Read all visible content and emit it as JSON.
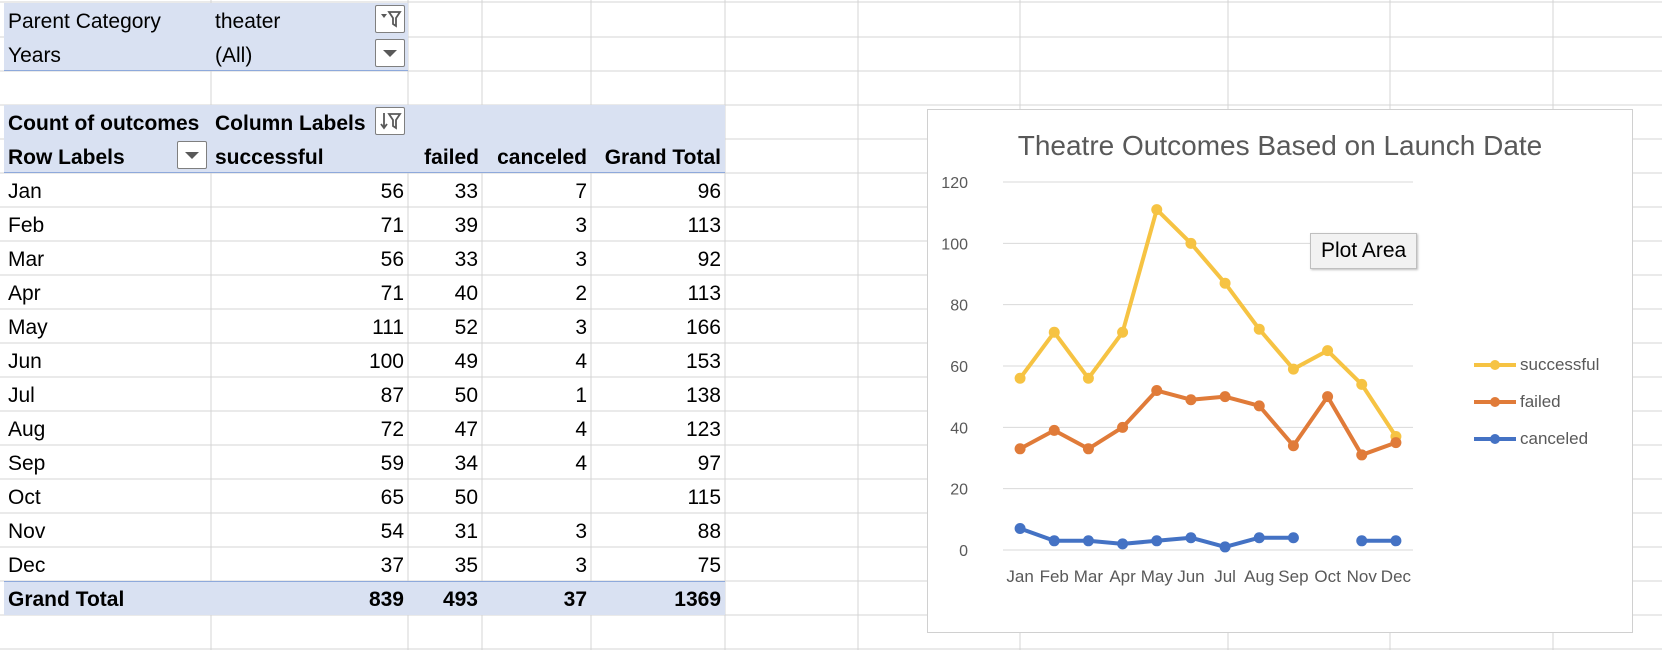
{
  "filters": {
    "parent_category_label": "Parent Category",
    "parent_category_value": "theater",
    "years_label": "Years",
    "years_value": "(All)"
  },
  "pivot": {
    "count_label": "Count of outcomes",
    "column_labels": "Column Labels",
    "row_labels": "Row Labels",
    "columns": [
      "successful",
      "failed",
      "canceled",
      "Grand Total"
    ],
    "rows": [
      {
        "label": "Jan",
        "successful": "56",
        "failed": "33",
        "canceled": "7",
        "total": "96"
      },
      {
        "label": "Feb",
        "successful": "71",
        "failed": "39",
        "canceled": "3",
        "total": "113"
      },
      {
        "label": "Mar",
        "successful": "56",
        "failed": "33",
        "canceled": "3",
        "total": "92"
      },
      {
        "label": "Apr",
        "successful": "71",
        "failed": "40",
        "canceled": "2",
        "total": "113"
      },
      {
        "label": "May",
        "successful": "111",
        "failed": "52",
        "canceled": "3",
        "total": "166"
      },
      {
        "label": "Jun",
        "successful": "100",
        "failed": "49",
        "canceled": "4",
        "total": "153"
      },
      {
        "label": "Jul",
        "successful": "87",
        "failed": "50",
        "canceled": "1",
        "total": "138"
      },
      {
        "label": "Aug",
        "successful": "72",
        "failed": "47",
        "canceled": "4",
        "total": "123"
      },
      {
        "label": "Sep",
        "successful": "59",
        "failed": "34",
        "canceled": "4",
        "total": "97"
      },
      {
        "label": "Oct",
        "successful": "65",
        "failed": "50",
        "canceled": "",
        "total": "115"
      },
      {
        "label": "Nov",
        "successful": "54",
        "failed": "31",
        "canceled": "3",
        "total": "88"
      },
      {
        "label": "Dec",
        "successful": "37",
        "failed": "35",
        "canceled": "3",
        "total": "75"
      }
    ],
    "grand_total": {
      "label": "Grand Total",
      "successful": "839",
      "failed": "493",
      "canceled": "37",
      "total": "1369"
    }
  },
  "tooltip": "Plot Area",
  "colors": {
    "successful": "#f6c343",
    "failed": "#e07b39",
    "canceled": "#4472c4",
    "pivot_band": "#d9e1f2"
  },
  "chart_data": {
    "type": "line",
    "title": "Theatre Outcomes Based on Launch Date",
    "categories": [
      "Jan",
      "Feb",
      "Mar",
      "Apr",
      "May",
      "Jun",
      "Jul",
      "Aug",
      "Sep",
      "Oct",
      "Nov",
      "Dec"
    ],
    "series": [
      {
        "name": "successful",
        "values": [
          56,
          71,
          56,
          71,
          111,
          100,
          87,
          72,
          59,
          65,
          54,
          37
        ]
      },
      {
        "name": "failed",
        "values": [
          33,
          39,
          33,
          40,
          52,
          49,
          50,
          47,
          34,
          50,
          31,
          35
        ]
      },
      {
        "name": "canceled",
        "values": [
          7,
          3,
          3,
          2,
          3,
          4,
          1,
          4,
          4,
          null,
          3,
          3
        ]
      }
    ],
    "yticks": [
      0,
      20,
      40,
      60,
      80,
      100,
      120
    ],
    "ylim": [
      0,
      120
    ],
    "grid": true,
    "legend": "right"
  }
}
